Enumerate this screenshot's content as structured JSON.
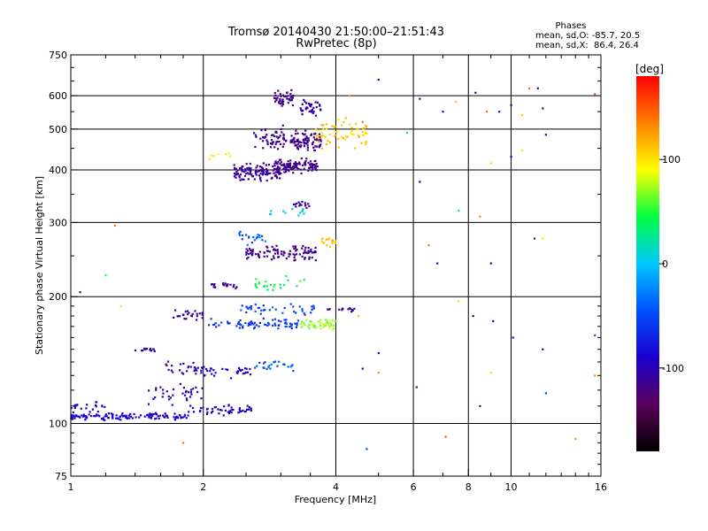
{
  "chart_data": {
    "type": "scatter",
    "title": "Tromsø 20140430 21:50:00–21:51:43",
    "subtitle": "RwPretec (8p)",
    "xlabel": "Frequency [MHz]",
    "ylabel": "Stationary phase Virtual Height [km]",
    "x_scale": "log",
    "y_scale": "log",
    "xlim": [
      1,
      16
    ],
    "ylim": [
      75,
      750
    ],
    "x_ticks": [
      {
        "v": 1,
        "label": "1"
      },
      {
        "v": 2,
        "label": "2"
      },
      {
        "v": 4,
        "label": "4"
      },
      {
        "v": 6,
        "label": "6"
      },
      {
        "v": 8,
        "label": "8"
      },
      {
        "v": 10,
        "label": "10"
      },
      {
        "v": 16,
        "label": "16"
      }
    ],
    "y_ticks": [
      {
        "v": 75,
        "label": "75"
      },
      {
        "v": 100,
        "label": "100"
      },
      {
        "v": 200,
        "label": "200"
      },
      {
        "v": 300,
        "label": "300"
      },
      {
        "v": 400,
        "label": "400"
      },
      {
        "v": 500,
        "label": "500"
      },
      {
        "v": 600,
        "label": "600"
      },
      {
        "v": 750,
        "label": "750"
      }
    ],
    "grid": true,
    "stats": {
      "title": "Phases",
      "line_o": "mean, sd,O: -85.7, 20.5",
      "line_x": "mean, sd,X:  86.4, 26.4"
    },
    "colorbar": {
      "label": "[deg]",
      "min": -180,
      "max": 180,
      "ticks": [
        {
          "v": 100,
          "label": "100"
        },
        {
          "v": 0,
          "label": "0"
        },
        {
          "v": -100,
          "label": "-100"
        }
      ],
      "stops": [
        "#000000",
        "#5a005a",
        "#1a00d0",
        "#0050ff",
        "#00c8ff",
        "#00ff40",
        "#ffff00",
        "#ff8000",
        "#ff0000"
      ]
    },
    "clusters": [
      {
        "f0": 1.0,
        "f1": 1.85,
        "h": 104,
        "hs": 3,
        "phase": -90,
        "ps": 12,
        "n": 120
      },
      {
        "f0": 1.85,
        "f1": 2.6,
        "h": 108,
        "hs": 4,
        "phase": -100,
        "ps": 12,
        "n": 50
      },
      {
        "f0": 1.0,
        "f1": 1.2,
        "h": 110,
        "hs": 4,
        "phase": -100,
        "ps": 8,
        "n": 20
      },
      {
        "f0": 1.5,
        "f1": 2.0,
        "h": 118,
        "hs": 10,
        "phase": -105,
        "ps": 10,
        "n": 35
      },
      {
        "f0": 1.6,
        "f1": 2.0,
        "h": 135,
        "hs": 8,
        "phase": -110,
        "ps": 10,
        "n": 20
      },
      {
        "f0": 1.9,
        "f1": 2.6,
        "h": 133,
        "hs": 6,
        "phase": -95,
        "ps": 12,
        "n": 40
      },
      {
        "f0": 2.6,
        "f1": 3.2,
        "h": 137,
        "hs": 6,
        "phase": -40,
        "ps": 25,
        "n": 25
      },
      {
        "f0": 1.4,
        "f1": 1.55,
        "h": 150,
        "hs": 3,
        "phase": -110,
        "ps": 6,
        "n": 14
      },
      {
        "f0": 1.7,
        "f1": 2.0,
        "h": 180,
        "hs": 8,
        "phase": -110,
        "ps": 8,
        "n": 25
      },
      {
        "f0": 2.0,
        "f1": 3.3,
        "h": 172,
        "hs": 7,
        "phase": -60,
        "ps": 25,
        "n": 70
      },
      {
        "f0": 2.4,
        "f1": 3.6,
        "h": 187,
        "hs": 8,
        "phase": -50,
        "ps": 30,
        "n": 40
      },
      {
        "f0": 3.3,
        "f1": 4.0,
        "h": 172,
        "hs": 6,
        "phase": 70,
        "ps": 20,
        "n": 45
      },
      {
        "f0": 3.8,
        "f1": 4.5,
        "h": 186,
        "hs": 4,
        "phase": -110,
        "ps": 10,
        "n": 15
      },
      {
        "f0": 2.05,
        "f1": 2.4,
        "h": 213,
        "hs": 5,
        "phase": -115,
        "ps": 8,
        "n": 20
      },
      {
        "f0": 2.6,
        "f1": 3.4,
        "h": 215,
        "hs": 12,
        "phase": 40,
        "ps": 35,
        "n": 25
      },
      {
        "f0": 2.5,
        "f1": 3.6,
        "h": 255,
        "hs": 15,
        "phase": -115,
        "ps": 10,
        "n": 100
      },
      {
        "f0": 2.4,
        "f1": 2.8,
        "h": 275,
        "hs": 15,
        "phase": -40,
        "ps": 30,
        "n": 20
      },
      {
        "f0": 3.7,
        "f1": 4.0,
        "h": 270,
        "hs": 15,
        "phase": 110,
        "ps": 15,
        "n": 15
      },
      {
        "f0": 2.7,
        "f1": 3.4,
        "h": 318,
        "hs": 12,
        "phase": 10,
        "ps": 30,
        "n": 12
      },
      {
        "f0": 3.2,
        "f1": 3.5,
        "h": 330,
        "hs": 10,
        "phase": -110,
        "ps": 8,
        "n": 15
      },
      {
        "f0": 2.35,
        "f1": 3.0,
        "h": 395,
        "hs": 25,
        "phase": -110,
        "ps": 10,
        "n": 110
      },
      {
        "f0": 2.9,
        "f1": 3.65,
        "h": 410,
        "hs": 20,
        "phase": -115,
        "ps": 10,
        "n": 110
      },
      {
        "f0": 3.2,
        "f1": 3.7,
        "h": 470,
        "hs": 35,
        "phase": -115,
        "ps": 10,
        "n": 80
      },
      {
        "f0": 2.6,
        "f1": 3.2,
        "h": 470,
        "hs": 45,
        "phase": -110,
        "ps": 10,
        "n": 60
      },
      {
        "f0": 2.9,
        "f1": 3.2,
        "h": 590,
        "hs": 35,
        "phase": -115,
        "ps": 10,
        "n": 45
      },
      {
        "f0": 3.3,
        "f1": 3.7,
        "h": 560,
        "hs": 35,
        "phase": -105,
        "ps": 15,
        "n": 35
      },
      {
        "f0": 3.6,
        "f1": 4.7,
        "h": 490,
        "hs": 50,
        "phase": 110,
        "ps": 30,
        "n": 65
      },
      {
        "f0": 2.0,
        "f1": 2.4,
        "h": 430,
        "hs": 20,
        "phase": 100,
        "ps": 20,
        "n": 8
      }
    ],
    "scatter_points": [
      [
        4.3,
        600,
        130
      ],
      [
        5.0,
        655,
        -100
      ],
      [
        6.2,
        590,
        -110
      ],
      [
        7.0,
        550,
        -100
      ],
      [
        8.3,
        610,
        -110
      ],
      [
        9.4,
        550,
        -110
      ],
      [
        10.0,
        570,
        -120
      ],
      [
        10.6,
        540,
        110
      ],
      [
        11.0,
        625,
        140
      ],
      [
        11.5,
        625,
        -100
      ],
      [
        11.8,
        560,
        -110
      ],
      [
        15.5,
        605,
        160
      ],
      [
        12.0,
        485,
        -110
      ],
      [
        7.5,
        580,
        110
      ],
      [
        8.8,
        550,
        140
      ],
      [
        9.0,
        415,
        100
      ],
      [
        10.6,
        445,
        100
      ],
      [
        6.2,
        375,
        -100
      ],
      [
        7.6,
        320,
        30
      ],
      [
        8.5,
        310,
        130
      ],
      [
        9.0,
        240,
        -110
      ],
      [
        10.0,
        430,
        -110
      ],
      [
        11.8,
        275,
        100
      ],
      [
        11.3,
        275,
        -130
      ],
      [
        6.5,
        265,
        140
      ],
      [
        6.8,
        240,
        -110
      ],
      [
        7.6,
        195,
        100
      ],
      [
        8.2,
        180,
        -110
      ],
      [
        9.1,
        175,
        -100
      ],
      [
        10.1,
        160,
        -90
      ],
      [
        11.8,
        150,
        -100
      ],
      [
        15.5,
        162,
        -50
      ],
      [
        15.5,
        130,
        130
      ],
      [
        12.0,
        118,
        -50
      ],
      [
        9.0,
        132,
        100
      ],
      [
        8.5,
        110,
        -130
      ],
      [
        7.1,
        93,
        150
      ],
      [
        6.1,
        122,
        -110
      ],
      [
        4.7,
        87,
        -50
      ],
      [
        5.0,
        147,
        -110
      ],
      [
        5.0,
        132,
        130
      ],
      [
        4.5,
        180,
        110
      ],
      [
        4.6,
        135,
        -100
      ],
      [
        14.0,
        92,
        130
      ],
      [
        1.1,
        105,
        -100
      ],
      [
        1.2,
        225,
        50
      ],
      [
        1.3,
        190,
        80
      ],
      [
        1.26,
        295,
        140
      ],
      [
        1.05,
        205,
        -110
      ],
      [
        1.8,
        90,
        140
      ],
      [
        5.8,
        490,
        30
      ],
      [
        4.6,
        520,
        140
      ]
    ]
  }
}
